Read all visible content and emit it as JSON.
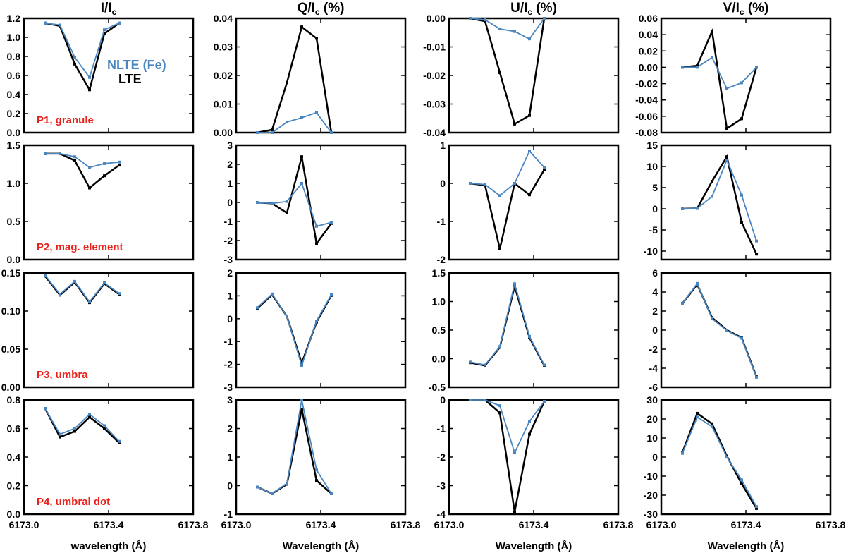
{
  "colors": {
    "lte": "#000000",
    "nlte": "#4a86c0",
    "panel_label": "#e8221b"
  },
  "legend": [
    {
      "label": "NLTE (Fe)",
      "color": "#4a86c0"
    },
    {
      "label": "LTE",
      "color": "#000000"
    }
  ],
  "column_titles": [
    {
      "base": "I/I",
      "sub": "c",
      "suffix": ""
    },
    {
      "base": "Q/I",
      "sub": "c",
      "suffix": " (%)"
    },
    {
      "base": "U/I",
      "sub": "c",
      "suffix": " (%)"
    },
    {
      "base": "V/I",
      "sub": "c",
      "suffix": " (%)"
    }
  ],
  "x_labels": [
    "wavelength (Å)",
    "Wavelength (Å)",
    "Wavelength (Å)",
    "Wavelength (Å)"
  ],
  "x_axis": {
    "range": [
      6173.0,
      6173.8
    ],
    "ticks": [
      6173.0,
      6173.4,
      6173.8
    ],
    "tick_labels": [
      "6173.0",
      "6173.4",
      "6173.8"
    ]
  },
  "row_labels": [
    "P1, granule",
    "P2, mag. element",
    "P3, umbra",
    "P4, umbral dot"
  ],
  "chart_data": [
    {
      "type": "line",
      "row": 0,
      "col": 0,
      "ylim": [
        0,
        1.2
      ],
      "yticks": [
        0,
        0.2,
        0.4,
        0.6,
        0.8,
        1.0,
        1.2
      ],
      "ytick_labels": [
        "0.0",
        "0.2",
        "0.4",
        "0.6",
        "0.8",
        "1.0",
        "1.2"
      ],
      "x": [
        6173.1,
        6173.17,
        6173.24,
        6173.31,
        6173.38,
        6173.45
      ],
      "series": [
        {
          "name": "LTE",
          "values": [
            1.15,
            1.12,
            0.72,
            0.45,
            1.04,
            1.15
          ]
        },
        {
          "name": "NLTE (Fe)",
          "values": [
            1.15,
            1.13,
            0.79,
            0.58,
            1.08,
            1.15
          ]
        }
      ]
    },
    {
      "type": "line",
      "row": 0,
      "col": 1,
      "ylim": [
        0,
        0.04
      ],
      "yticks": [
        0,
        0.01,
        0.02,
        0.03,
        0.04
      ],
      "ytick_labels": [
        "0.00",
        "0.01",
        "0.02",
        "0.03",
        "0.04"
      ],
      "x": [
        6173.1,
        6173.17,
        6173.24,
        6173.31,
        6173.38,
        6173.45
      ],
      "series": [
        {
          "name": "LTE",
          "values": [
            0.0,
            0.001,
            0.0175,
            0.037,
            0.033,
            0.0
          ]
        },
        {
          "name": "NLTE (Fe)",
          "values": [
            0.0,
            0.0,
            0.0037,
            0.0052,
            0.007,
            0.0
          ]
        }
      ]
    },
    {
      "type": "line",
      "row": 0,
      "col": 2,
      "ylim": [
        -0.04,
        0
      ],
      "yticks": [
        -0.04,
        -0.03,
        -0.02,
        -0.01,
        0
      ],
      "ytick_labels": [
        "-0.04",
        "-0.03",
        "-0.02",
        "-0.01",
        "0.00"
      ],
      "x": [
        6173.1,
        6173.17,
        6173.24,
        6173.31,
        6173.38,
        6173.45
      ],
      "series": [
        {
          "name": "LTE",
          "values": [
            0.0,
            -0.001,
            -0.019,
            -0.037,
            -0.034,
            0.0
          ]
        },
        {
          "name": "NLTE (Fe)",
          "values": [
            0.0,
            -0.0005,
            -0.0037,
            -0.0046,
            -0.0072,
            0.0
          ]
        }
      ]
    },
    {
      "type": "line",
      "row": 0,
      "col": 3,
      "ylim": [
        -0.08,
        0.06
      ],
      "yticks": [
        -0.08,
        -0.06,
        -0.04,
        -0.02,
        0,
        0.02,
        0.04,
        0.06
      ],
      "ytick_labels": [
        "-0.08",
        "-0.06",
        "-0.04",
        "-0.02",
        "0.00",
        "0.02",
        "0.04",
        "0.06"
      ],
      "x": [
        6173.1,
        6173.17,
        6173.24,
        6173.31,
        6173.38,
        6173.45
      ],
      "series": [
        {
          "name": "LTE",
          "values": [
            0.0,
            0.002,
            0.044,
            -0.075,
            -0.063,
            0.0
          ]
        },
        {
          "name": "NLTE (Fe)",
          "values": [
            0.0,
            0.0,
            0.012,
            -0.026,
            -0.019,
            0.0
          ]
        }
      ]
    },
    {
      "type": "line",
      "row": 1,
      "col": 0,
      "ylim": [
        0,
        1.5
      ],
      "yticks": [
        0,
        0.5,
        1.0,
        1.5
      ],
      "ytick_labels": [
        "0.0",
        "0.5",
        "1.0",
        "1.5"
      ],
      "x": [
        6173.1,
        6173.17,
        6173.24,
        6173.31,
        6173.38,
        6173.45
      ],
      "series": [
        {
          "name": "LTE",
          "values": [
            1.39,
            1.39,
            1.3,
            0.94,
            1.1,
            1.24
          ]
        },
        {
          "name": "NLTE (Fe)",
          "values": [
            1.39,
            1.39,
            1.35,
            1.21,
            1.26,
            1.28
          ]
        }
      ]
    },
    {
      "type": "line",
      "row": 1,
      "col": 1,
      "ylim": [
        -3,
        3
      ],
      "yticks": [
        -3,
        -2,
        -1,
        0,
        1,
        2,
        3
      ],
      "ytick_labels": [
        "-3",
        "-2",
        "-1",
        "0",
        "1",
        "2",
        "3"
      ],
      "x": [
        6173.1,
        6173.17,
        6173.24,
        6173.31,
        6173.38,
        6173.45
      ],
      "series": [
        {
          "name": "LTE",
          "values": [
            0.0,
            -0.05,
            -0.55,
            2.4,
            -2.15,
            -1.1
          ]
        },
        {
          "name": "NLTE (Fe)",
          "values": [
            0.0,
            -0.05,
            0.05,
            1.0,
            -1.25,
            -1.05
          ]
        }
      ]
    },
    {
      "type": "line",
      "row": 1,
      "col": 2,
      "ylim": [
        -2,
        1
      ],
      "yticks": [
        -2,
        -1,
        0,
        1
      ],
      "ytick_labels": [
        "-2",
        "-1",
        "0",
        "1"
      ],
      "x": [
        6173.1,
        6173.17,
        6173.24,
        6173.31,
        6173.38,
        6173.45
      ],
      "series": [
        {
          "name": "LTE",
          "values": [
            0.0,
            -0.05,
            -1.72,
            0.0,
            -0.3,
            0.36
          ]
        },
        {
          "name": "NLTE (Fe)",
          "values": [
            0.0,
            -0.03,
            -0.32,
            0.0,
            0.85,
            0.42
          ]
        }
      ]
    },
    {
      "type": "line",
      "row": 1,
      "col": 3,
      "ylim": [
        -12,
        15
      ],
      "yticks": [
        -10,
        -5,
        0,
        5,
        10,
        15
      ],
      "ytick_labels": [
        "-10",
        "-5",
        "0",
        "5",
        "10",
        "15"
      ],
      "x": [
        6173.1,
        6173.17,
        6173.24,
        6173.31,
        6173.38,
        6173.45
      ],
      "series": [
        {
          "name": "LTE",
          "values": [
            0.0,
            0.1,
            6.5,
            12.3,
            -3.2,
            -10.7
          ]
        },
        {
          "name": "NLTE (Fe)",
          "values": [
            0.0,
            0.1,
            2.9,
            11.5,
            3.2,
            -7.6
          ]
        }
      ]
    },
    {
      "type": "line",
      "row": 2,
      "col": 0,
      "ylim": [
        0,
        0.15
      ],
      "yticks": [
        0,
        0.05,
        0.1,
        0.15
      ],
      "ytick_labels": [
        "0.00",
        "0.05",
        "0.10",
        "0.15"
      ],
      "x": [
        6173.1,
        6173.17,
        6173.24,
        6173.31,
        6173.38,
        6173.45
      ],
      "series": [
        {
          "name": "LTE",
          "values": [
            0.146,
            0.121,
            0.138,
            0.111,
            0.136,
            0.122
          ]
        },
        {
          "name": "NLTE (Fe)",
          "values": [
            0.147,
            0.122,
            0.139,
            0.112,
            0.137,
            0.123
          ]
        }
      ]
    },
    {
      "type": "line",
      "row": 2,
      "col": 1,
      "ylim": [
        -3,
        2
      ],
      "yticks": [
        -3,
        -2,
        -1,
        0,
        1,
        2
      ],
      "ytick_labels": [
        "-3",
        "-2",
        "-1",
        "0",
        "1",
        "2"
      ],
      "x": [
        6173.1,
        6173.17,
        6173.24,
        6173.31,
        6173.38,
        6173.45
      ],
      "series": [
        {
          "name": "LTE",
          "values": [
            0.45,
            1.05,
            0.1,
            -1.95,
            -0.15,
            1.02
          ]
        },
        {
          "name": "NLTE (Fe)",
          "values": [
            0.48,
            1.08,
            0.1,
            -2.05,
            -0.1,
            1.05
          ]
        }
      ]
    },
    {
      "type": "line",
      "row": 2,
      "col": 2,
      "ylim": [
        -0.5,
        1.5
      ],
      "yticks": [
        -0.5,
        0,
        0.5,
        1.0,
        1.5
      ],
      "ytick_labels": [
        "-0.5",
        "0.0",
        "0.5",
        "1.0",
        "1.5"
      ],
      "x": [
        6173.1,
        6173.17,
        6173.24,
        6173.31,
        6173.38,
        6173.45
      ],
      "series": [
        {
          "name": "LTE",
          "values": [
            -0.07,
            -0.12,
            0.2,
            1.27,
            0.37,
            -0.12
          ]
        },
        {
          "name": "NLTE (Fe)",
          "values": [
            -0.06,
            -0.11,
            0.21,
            1.31,
            0.39,
            -0.11
          ]
        }
      ]
    },
    {
      "type": "line",
      "row": 2,
      "col": 3,
      "ylim": [
        -6,
        6
      ],
      "yticks": [
        -6,
        -4,
        -2,
        0,
        2,
        4,
        6
      ],
      "ytick_labels": [
        "-6",
        "-4",
        "-2",
        "0",
        "2",
        "4",
        "6"
      ],
      "x": [
        6173.1,
        6173.17,
        6173.24,
        6173.31,
        6173.38,
        6173.45
      ],
      "series": [
        {
          "name": "LTE",
          "values": [
            2.8,
            4.8,
            1.3,
            0.0,
            -0.8,
            -4.9
          ]
        },
        {
          "name": "NLTE (Fe)",
          "values": [
            2.8,
            4.9,
            1.2,
            -0.05,
            -0.85,
            -4.95
          ]
        }
      ]
    },
    {
      "type": "line",
      "row": 3,
      "col": 0,
      "ylim": [
        0,
        0.8
      ],
      "yticks": [
        0,
        0.2,
        0.4,
        0.6,
        0.8
      ],
      "ytick_labels": [
        "0.0",
        "0.2",
        "0.4",
        "0.6",
        "0.8"
      ],
      "x": [
        6173.1,
        6173.17,
        6173.24,
        6173.31,
        6173.38,
        6173.45
      ],
      "series": [
        {
          "name": "LTE",
          "values": [
            0.74,
            0.54,
            0.58,
            0.68,
            0.6,
            0.5
          ]
        },
        {
          "name": "NLTE (Fe)",
          "values": [
            0.74,
            0.56,
            0.6,
            0.7,
            0.62,
            0.51
          ]
        }
      ]
    },
    {
      "type": "line",
      "row": 3,
      "col": 1,
      "ylim": [
        -1,
        3
      ],
      "yticks": [
        -1,
        0,
        1,
        2,
        3
      ],
      "ytick_labels": [
        "-1",
        "0",
        "1",
        "2",
        "3"
      ],
      "x": [
        6173.1,
        6173.17,
        6173.24,
        6173.31,
        6173.38,
        6173.45
      ],
      "series": [
        {
          "name": "LTE",
          "values": [
            -0.05,
            -0.28,
            0.05,
            2.68,
            0.18,
            -0.28
          ]
        },
        {
          "name": "NLTE (Fe)",
          "values": [
            -0.05,
            -0.28,
            0.08,
            3.0,
            0.55,
            -0.28
          ]
        }
      ]
    },
    {
      "type": "line",
      "row": 3,
      "col": 2,
      "ylim": [
        -4,
        0
      ],
      "yticks": [
        -4,
        -3,
        -2,
        -1,
        0
      ],
      "ytick_labels": [
        "-4",
        "-3",
        "-2",
        "-1",
        "0"
      ],
      "x": [
        6173.1,
        6173.17,
        6173.24,
        6173.31,
        6173.38,
        6173.45
      ],
      "series": [
        {
          "name": "LTE",
          "values": [
            0.0,
            0.0,
            -0.45,
            -3.92,
            -1.2,
            -0.05
          ]
        },
        {
          "name": "NLTE (Fe)",
          "values": [
            0.0,
            0.0,
            -0.2,
            -1.85,
            -0.75,
            -0.05
          ]
        }
      ]
    },
    {
      "type": "line",
      "row": 3,
      "col": 3,
      "ylim": [
        -30,
        30
      ],
      "yticks": [
        -30,
        -20,
        -10,
        0,
        10,
        20,
        30
      ],
      "ytick_labels": [
        "-30",
        "-20",
        "-10",
        "0",
        "10",
        "20",
        "30"
      ],
      "x": [
        6173.1,
        6173.17,
        6173.24,
        6173.31,
        6173.38,
        6173.45
      ],
      "series": [
        {
          "name": "LTE",
          "values": [
            2.5,
            23.0,
            17.5,
            0.5,
            -14.0,
            -27.0
          ]
        },
        {
          "name": "NLTE (Fe)",
          "values": [
            2.0,
            21.0,
            16.0,
            0.0,
            -12.0,
            -26.0
          ]
        }
      ]
    }
  ]
}
